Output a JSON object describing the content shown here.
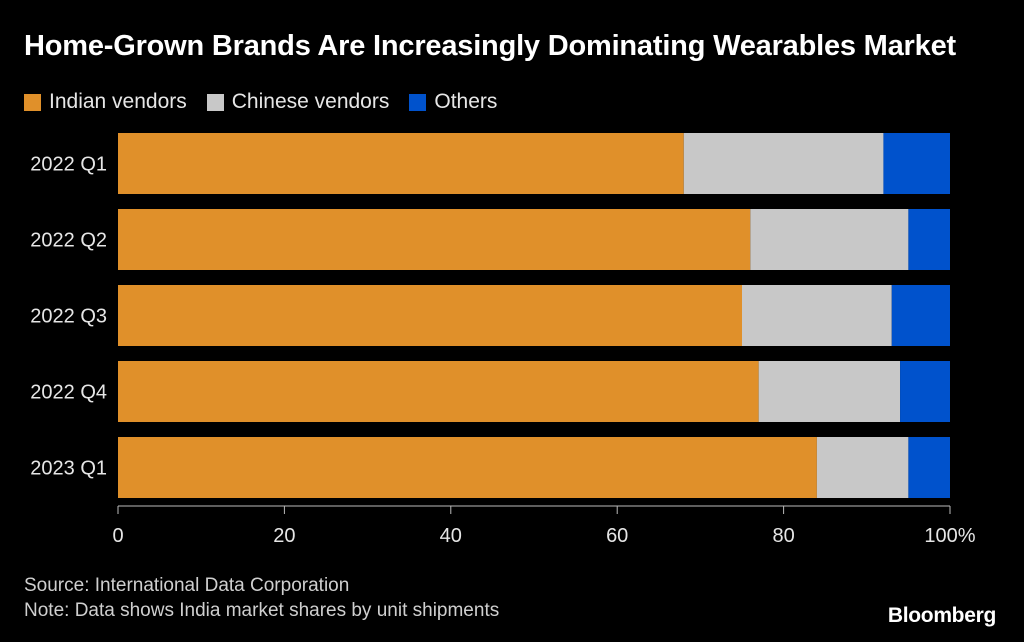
{
  "chart_data": {
    "type": "bar",
    "orientation": "horizontal",
    "stacked": true,
    "title": "Home-Grown Brands Are Increasingly Dominating Wearables Market",
    "categories": [
      "2022 Q1",
      "2022 Q2",
      "2022 Q3",
      "2022 Q4",
      "2023 Q1"
    ],
    "series": [
      {
        "name": "Indian vendors",
        "color": "#e0902a",
        "values": [
          68,
          76,
          75,
          77,
          84
        ]
      },
      {
        "name": "Chinese vendors",
        "color": "#c8c8c8",
        "values": [
          24,
          19,
          18,
          17,
          11
        ]
      },
      {
        "name": "Others",
        "color": "#0052cc",
        "values": [
          8,
          5,
          7,
          6,
          5
        ]
      }
    ],
    "xlim": [
      0,
      100
    ],
    "x_ticks": [
      0,
      20,
      40,
      60,
      80,
      100
    ],
    "x_tick_labels": [
      "0",
      "20",
      "40",
      "60",
      "80",
      "100%"
    ],
    "xlabel": "",
    "ylabel": "",
    "legend_position": "top-left",
    "grid": false
  },
  "footer": {
    "source": "Source: International Data Corporation",
    "note": "Note: Data shows India market shares by unit shipments"
  },
  "brand": "Bloomberg",
  "colors": {
    "background": "#000000",
    "text": "#ffffff",
    "axis": "#bbbbbb"
  }
}
